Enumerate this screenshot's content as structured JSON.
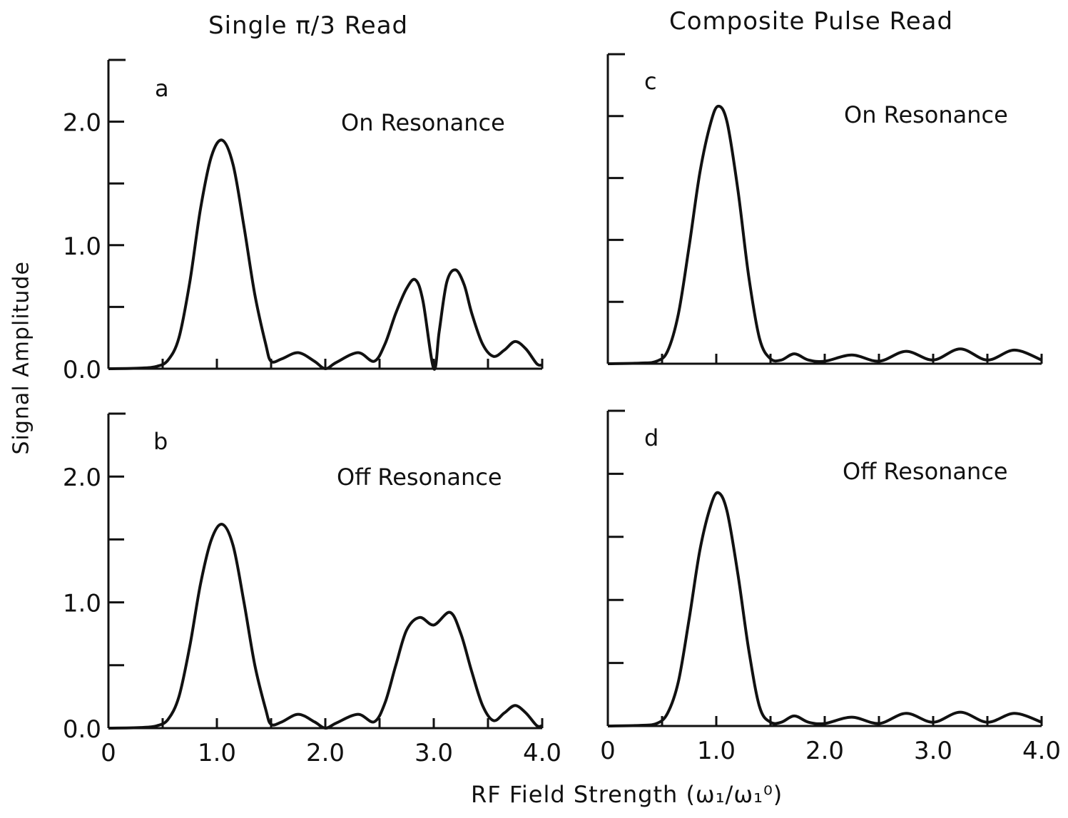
{
  "titles": {
    "left_column": "Single π/3 Read",
    "right_column": "Composite Pulse Read"
  },
  "axes": {
    "ylabel": "Signal Amplitude",
    "xlabel": "RF Field Strength (ω₁/ω₁⁰)"
  },
  "chart_data": [
    {
      "type": "line",
      "panel_label": "a",
      "annotation": "On Resonance",
      "x_ticks": [],
      "y_ticks": [
        "0.0",
        "1.0",
        "2.0"
      ],
      "xlim": [
        0,
        4
      ],
      "ylim": [
        0,
        2.5
      ],
      "series": [
        {
          "x": [
            0,
            0.3,
            0.45,
            0.55,
            0.65,
            0.75,
            0.85,
            0.95,
            1.05,
            1.15,
            1.25,
            1.35,
            1.45,
            1.5,
            1.6,
            1.75,
            1.9,
            2.0,
            2.1,
            2.3,
            2.45,
            2.55,
            2.65,
            2.75,
            2.83,
            2.9,
            3.0,
            3.05,
            3.12,
            3.2,
            3.28,
            3.35,
            3.45,
            3.55,
            3.65,
            3.75,
            3.85,
            3.95,
            4.0
          ],
          "y": [
            0,
            0.005,
            0.02,
            0.07,
            0.25,
            0.7,
            1.3,
            1.72,
            1.85,
            1.65,
            1.15,
            0.6,
            0.2,
            0.06,
            0.08,
            0.13,
            0.06,
            0.0,
            0.05,
            0.13,
            0.06,
            0.2,
            0.45,
            0.65,
            0.72,
            0.55,
            0.0,
            0.3,
            0.7,
            0.8,
            0.68,
            0.45,
            0.2,
            0.1,
            0.15,
            0.22,
            0.16,
            0.04,
            0.03
          ]
        }
      ]
    },
    {
      "type": "line",
      "panel_label": "b",
      "annotation": "Off Resonance",
      "x_ticks": [
        "0",
        "1.0",
        "2.0",
        "3.0",
        "4.0"
      ],
      "y_ticks": [
        "0.0",
        "1.0",
        "2.0"
      ],
      "xlim": [
        0,
        4
      ],
      "ylim": [
        0,
        2.5
      ],
      "series": [
        {
          "x": [
            0,
            0.3,
            0.45,
            0.55,
            0.65,
            0.75,
            0.85,
            0.95,
            1.05,
            1.15,
            1.25,
            1.35,
            1.45,
            1.5,
            1.6,
            1.75,
            1.9,
            2.0,
            2.1,
            2.3,
            2.45,
            2.55,
            2.65,
            2.75,
            2.87,
            3.0,
            3.15,
            3.25,
            3.35,
            3.45,
            3.55,
            3.65,
            3.75,
            3.85,
            3.95,
            4.0
          ],
          "y": [
            0,
            0.005,
            0.02,
            0.07,
            0.25,
            0.65,
            1.15,
            1.5,
            1.62,
            1.45,
            1.0,
            0.5,
            0.15,
            0.03,
            0.05,
            0.11,
            0.05,
            0.0,
            0.04,
            0.11,
            0.05,
            0.2,
            0.5,
            0.78,
            0.88,
            0.82,
            0.92,
            0.75,
            0.45,
            0.18,
            0.06,
            0.12,
            0.18,
            0.12,
            0.02,
            0.02
          ]
        }
      ]
    },
    {
      "type": "line",
      "panel_label": "c",
      "annotation": "On Resonance",
      "x_ticks": [],
      "y_ticks": [],
      "xlim": [
        0,
        4
      ],
      "ylim": [
        0,
        2.5
      ],
      "series": [
        {
          "x": [
            0,
            0.3,
            0.45,
            0.55,
            0.65,
            0.75,
            0.85,
            0.95,
            1.02,
            1.1,
            1.2,
            1.3,
            1.4,
            1.5,
            1.6,
            1.72,
            1.85,
            2.0,
            2.25,
            2.5,
            2.75,
            3.0,
            3.25,
            3.5,
            3.75,
            4.0
          ],
          "y": [
            0,
            0.005,
            0.02,
            0.1,
            0.4,
            0.95,
            1.55,
            1.95,
            2.08,
            1.95,
            1.4,
            0.7,
            0.2,
            0.04,
            0.03,
            0.08,
            0.03,
            0.02,
            0.07,
            0.02,
            0.1,
            0.03,
            0.12,
            0.03,
            0.11,
            0.03
          ]
        }
      ]
    },
    {
      "type": "line",
      "panel_label": "d",
      "annotation": "Off Resonance",
      "x_ticks": [
        "0",
        "1.0",
        "2.0",
        "3.0",
        "4.0"
      ],
      "y_ticks": [],
      "xlim": [
        0,
        4
      ],
      "ylim": [
        0,
        2.5
      ],
      "series": [
        {
          "x": [
            0,
            0.3,
            0.45,
            0.55,
            0.65,
            0.75,
            0.85,
            0.95,
            1.02,
            1.1,
            1.2,
            1.3,
            1.4,
            1.5,
            1.6,
            1.72,
            1.85,
            2.0,
            2.25,
            2.5,
            2.75,
            3.0,
            3.25,
            3.5,
            3.75,
            4.0
          ],
          "y": [
            0,
            0.005,
            0.02,
            0.1,
            0.35,
            0.85,
            1.4,
            1.75,
            1.85,
            1.7,
            1.2,
            0.6,
            0.15,
            0.03,
            0.03,
            0.08,
            0.03,
            0.02,
            0.07,
            0.02,
            0.1,
            0.03,
            0.11,
            0.03,
            0.1,
            0.03
          ]
        }
      ]
    }
  ]
}
